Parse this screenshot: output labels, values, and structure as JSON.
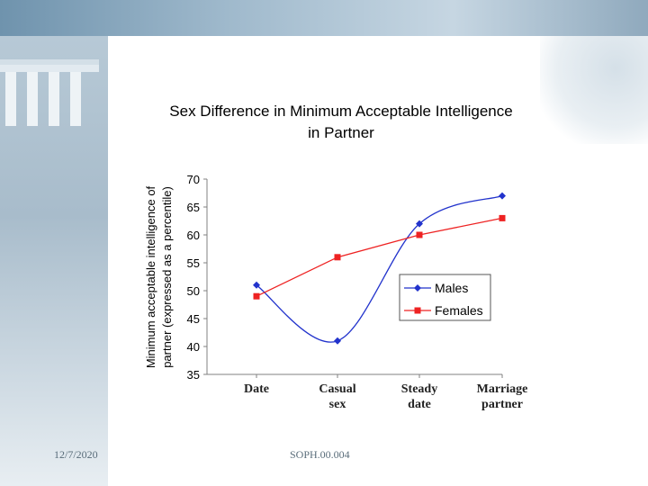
{
  "chart_data": {
    "type": "line",
    "title_line1": "Sex Difference in Minimum Acceptable Intelligence",
    "title_line2": "in Partner",
    "ylabel_line1": "Minimum acceptable intelligence of",
    "ylabel_line2": "partner (expressed as a percentile)",
    "categories": [
      "Date",
      "Casual sex",
      "Steady date",
      "Marriage partner"
    ],
    "category_label_lines": [
      [
        "Date"
      ],
      [
        "Casual",
        "sex"
      ],
      [
        "Steady",
        "date"
      ],
      [
        "Marriage",
        "partner"
      ]
    ],
    "ylim": [
      35,
      70
    ],
    "yticks": [
      35,
      40,
      45,
      50,
      55,
      60,
      65,
      70
    ],
    "grid": false,
    "legend_position": "center-right",
    "series": [
      {
        "name": "Males",
        "values": [
          51,
          41,
          62,
          67
        ],
        "color": "#2233cc",
        "marker": "diamond",
        "smooth": true
      },
      {
        "name": "Females",
        "values": [
          49,
          56,
          60,
          63
        ],
        "color": "#ee2222",
        "marker": "square",
        "smooth": false
      }
    ]
  },
  "footer": {
    "date": "12/7/2020",
    "code": "SOPH.00.004"
  }
}
